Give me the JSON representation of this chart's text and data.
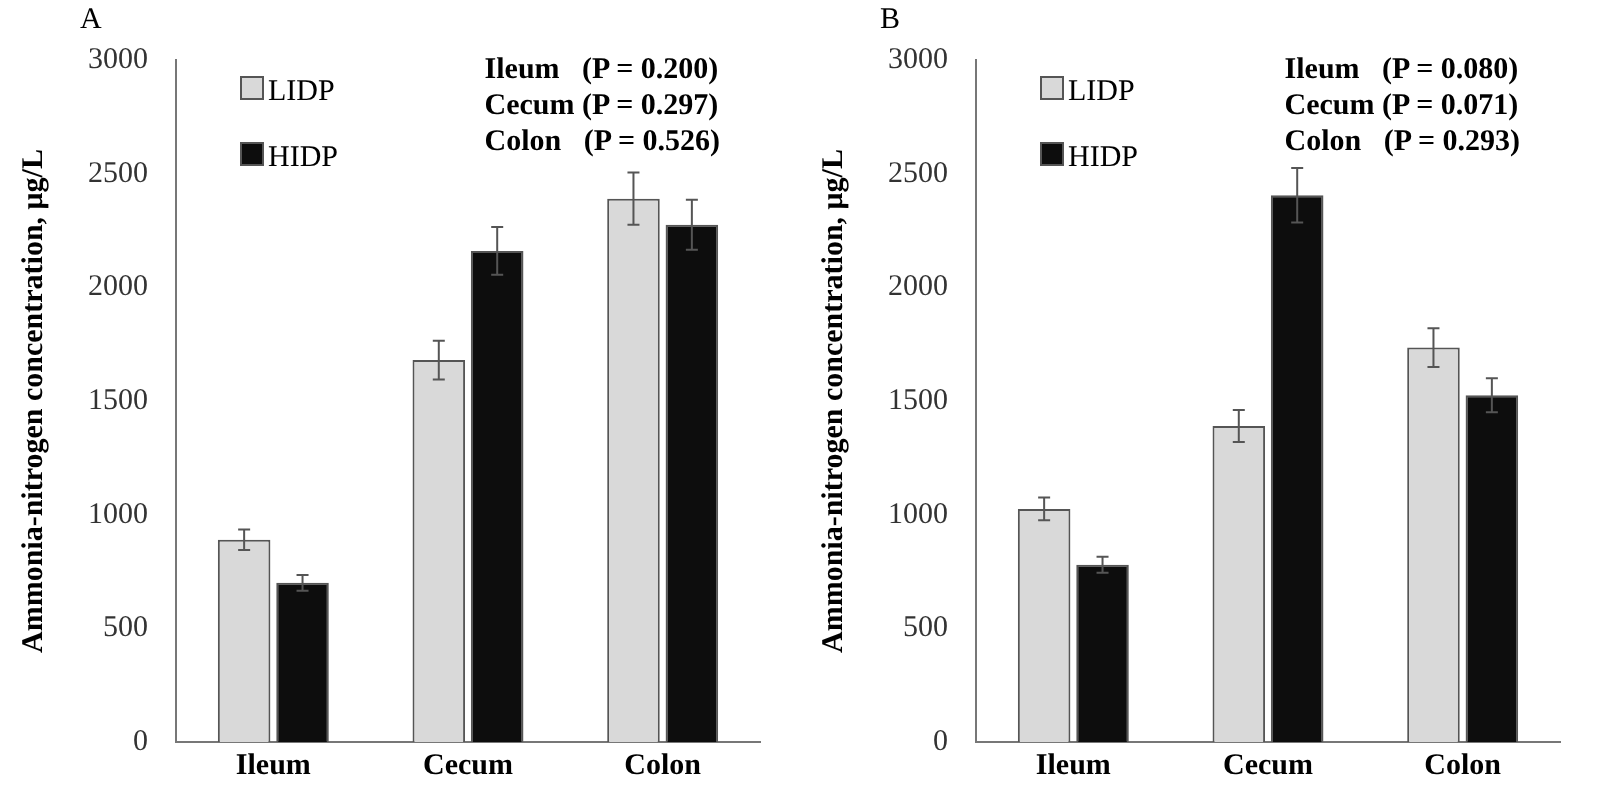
{
  "chart_data": [
    {
      "type": "bar",
      "title": "A",
      "ylabel": "Ammonia-nitrogen concentration, μg/L",
      "categories": [
        "Ileum",
        "Cecum",
        "Colon"
      ],
      "series": [
        {
          "name": "LIDP",
          "color": "#d9d9d9",
          "values": [
            890,
            1680,
            2390
          ],
          "errors": [
            45,
            85,
            115
          ]
        },
        {
          "name": "HIDP",
          "color": "#0d0d0d",
          "values": [
            700,
            2160,
            2275
          ],
          "errors": [
            35,
            105,
            110
          ]
        }
      ],
      "ylim": [
        0,
        3000
      ],
      "yticks": [
        0,
        500,
        1000,
        1500,
        2000,
        2500,
        3000
      ],
      "grid": false,
      "legend": "top left",
      "annotations": [
        "Ileum   (P = 0.200)",
        "Cecum (P = 0.297)",
        "Colon   (P = 0.526)"
      ]
    },
    {
      "type": "bar",
      "title": "B",
      "ylabel": "Ammonia-nitrogen concentration, μg/L",
      "categories": [
        "Ileum",
        "Cecum",
        "Colon"
      ],
      "series": [
        {
          "name": "LIDP",
          "color": "#d9d9d9",
          "values": [
            1025,
            1390,
            1735
          ],
          "errors": [
            50,
            70,
            85
          ]
        },
        {
          "name": "HIDP",
          "color": "#0d0d0d",
          "values": [
            780,
            2405,
            1525
          ],
          "errors": [
            35,
            120,
            75
          ]
        }
      ],
      "ylim": [
        0,
        3000
      ],
      "yticks": [
        0,
        500,
        1000,
        1500,
        2000,
        2500,
        3000
      ],
      "grid": false,
      "legend": "top left",
      "annotations": [
        "Ileum   (P = 0.080)",
        "Cecum (P = 0.071)",
        "Colon   (P = 0.293)"
      ]
    }
  ]
}
